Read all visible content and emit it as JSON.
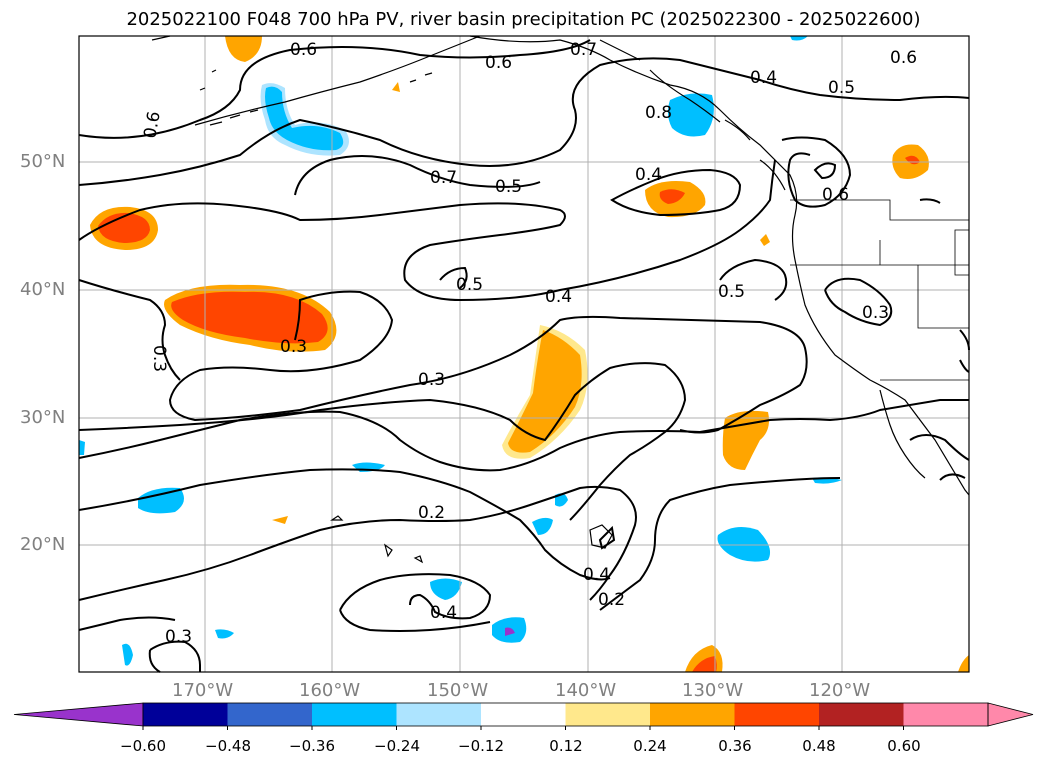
{
  "title": "2025022100 F048 700 hPa PV, river basin precipitation PC (2025022300 - 2025022600)",
  "lat_labels": [
    "50°N",
    "40°N",
    "30°N",
    "20°N"
  ],
  "lon_labels": [
    "170°W",
    "160°W",
    "150°W",
    "140°W",
    "130°W",
    "120°W"
  ],
  "contour_labels": [
    "0.6",
    "0.7",
    "0.6",
    "0.4",
    "0.5",
    "0.6",
    "0.8",
    "0.7",
    "0.5",
    "0.4",
    "0.6",
    "0.5",
    "0.4",
    "0.5",
    "0.3",
    "0.3",
    "0.3",
    "0.3",
    "0.2",
    "0.4",
    "0.4",
    "0.2",
    "0.3",
    "0.6"
  ],
  "colorbar": {
    "ticks": [
      "−0.60",
      "−0.48",
      "−0.36",
      "−0.24",
      "−0.12",
      "0.12",
      "0.24",
      "0.36",
      "0.48",
      "0.60"
    ],
    "colors": [
      "#9933cc",
      "#000099",
      "#3366cc",
      "#00bfff",
      "#ade4ff",
      "#ffffff",
      "#ffe88c",
      "#ffa500",
      "#ff4500",
      "#b22222",
      "#ff88aa",
      "#ff88aa"
    ],
    "under_color": "#9933cc",
    "over_color": "#ff88aa"
  }
}
